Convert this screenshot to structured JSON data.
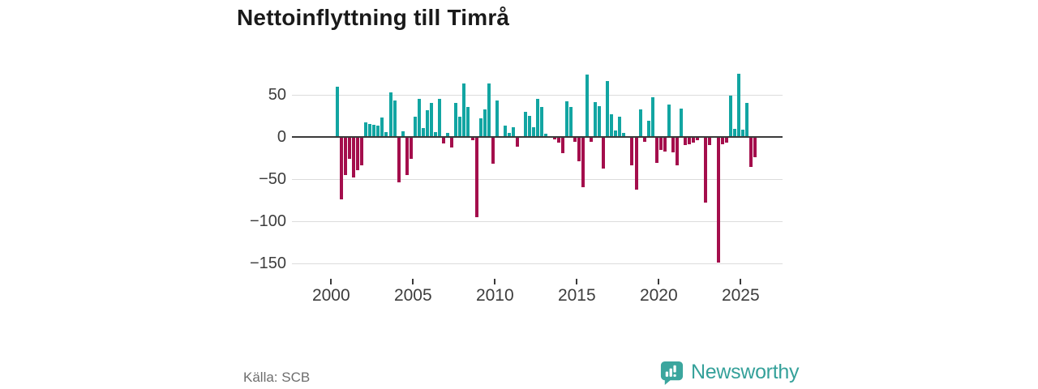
{
  "title": "Nettoinflyttning till Timrå",
  "source": "Källa: SCB",
  "brand": {
    "name": "Newsworthy"
  },
  "colors": {
    "positive": "#12a5a2",
    "negative": "#a40e4c",
    "axis": "#3a3a3a",
    "grid": "#dcdcdc",
    "brand_teal": "#3ba69e"
  },
  "chart_data": {
    "type": "bar",
    "title": "Nettoinflyttning till Timrå",
    "xlabel": "",
    "ylabel": "",
    "frequency": "quarterly",
    "start": {
      "year": 2000,
      "quarter": 2
    },
    "x_ticks": [
      2000,
      2005,
      2010,
      2015,
      2020,
      2025
    ],
    "y_ticks": [
      50,
      0,
      -50,
      -100,
      -150
    ],
    "ylim": [
      -160,
      80
    ],
    "xlim": [
      1999.6,
      2027.3
    ],
    "grid": true,
    "legend": false,
    "positive_color": "#12a5a2",
    "negative_color": "#a40e4c",
    "values": [
      60,
      -73,
      -44,
      -25,
      -47,
      -38,
      -33,
      17,
      15,
      14,
      13,
      23,
      6,
      53,
      43,
      -53,
      7,
      -44,
      -25,
      24,
      45,
      11,
      32,
      40,
      6,
      45,
      -7,
      5,
      -12,
      40,
      24,
      63,
      36,
      -3,
      -94,
      22,
      33,
      63,
      -31,
      43,
      0,
      13,
      5,
      12,
      -11,
      1,
      30,
      25,
      12,
      45,
      36,
      4,
      0,
      -2,
      -6,
      -18,
      42,
      36,
      -5,
      -28,
      -59,
      74,
      -5,
      41,
      37,
      -37,
      66,
      27,
      8,
      24,
      5,
      0,
      -33,
      -62,
      33,
      -5,
      19,
      47,
      -30,
      -14,
      -16,
      38,
      -17,
      -33,
      34,
      -9,
      -8,
      -6,
      -3,
      0,
      -77,
      -9,
      0,
      -148,
      -8,
      -6,
      49,
      10,
      75,
      9,
      40,
      -35,
      -23
    ]
  }
}
